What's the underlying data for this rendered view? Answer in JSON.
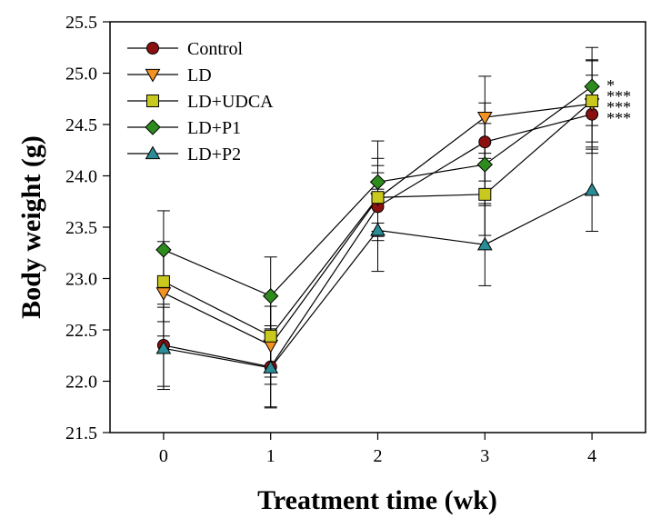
{
  "chart_data": {
    "type": "line",
    "xlabel": "Treatment time (wk)",
    "ylabel": "Body weight (g)",
    "x": [
      0,
      1,
      2,
      3,
      4
    ],
    "xlim": [
      -0.5,
      4.5
    ],
    "ylim": [
      21.5,
      25.5
    ],
    "xticks": [
      "0",
      "1",
      "2",
      "3",
      "4"
    ],
    "yticks": [
      "21.5",
      "22.0",
      "22.5",
      "23.0",
      "23.5",
      "24.0",
      "24.5",
      "25.0",
      "25.5"
    ],
    "grid": false,
    "legend_position": "top-left",
    "series": [
      {
        "name": "Control",
        "marker": "circle",
        "color": "#8b1010",
        "values": [
          22.35,
          22.14,
          23.7,
          24.33,
          24.6
        ],
        "errors": [
          0.4,
          0.4,
          0.33,
          0.38,
          0.38
        ]
      },
      {
        "name": "LD",
        "marker": "triangle-down",
        "color": "#f29222",
        "values": [
          22.86,
          22.35,
          23.78,
          24.57,
          24.7
        ],
        "errors": [
          0.42,
          0.38,
          0.32,
          0.4,
          0.42
        ]
      },
      {
        "name": "LD+UDCA",
        "marker": "square",
        "color": "#c8c81e",
        "values": [
          22.97,
          22.44,
          23.79,
          23.82,
          24.73
        ],
        "errors": [
          0.39,
          0.4,
          0.38,
          0.4,
          0.4
        ]
      },
      {
        "name": "LD+P1",
        "marker": "diamond",
        "color": "#2e8b1e",
        "values": [
          23.28,
          22.83,
          23.94,
          24.11,
          24.87
        ],
        "errors": [
          0.38,
          0.38,
          0.4,
          0.4,
          0.38
        ]
      },
      {
        "name": "LD+P2",
        "marker": "triangle-up",
        "color": "#2a8c94",
        "values": [
          22.32,
          22.13,
          23.47,
          23.33,
          23.86
        ],
        "errors": [
          0.4,
          0.38,
          0.4,
          0.4,
          0.4
        ]
      }
    ],
    "annotations": [
      "*",
      "***",
      "***",
      "***"
    ]
  }
}
